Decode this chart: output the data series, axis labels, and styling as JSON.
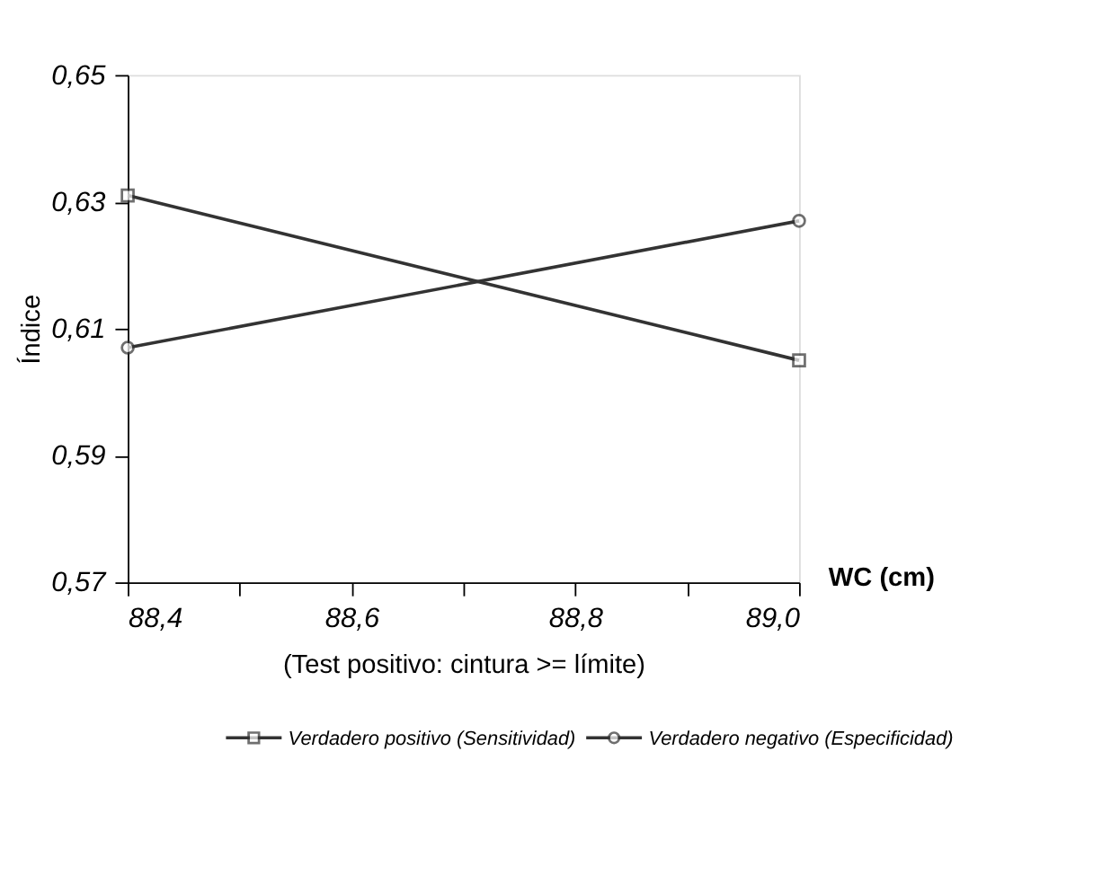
{
  "chart_data": {
    "type": "line",
    "xlabel": "(Test positivo: cintura >= límite)",
    "ylabel": "Índice",
    "annotations": [
      "WC (cm)"
    ],
    "x": [
      88.4,
      89.0
    ],
    "series": [
      {
        "name": "Verdadero positivo (Sensitividad)",
        "color": "#333333",
        "marker": "square",
        "values": [
          0.631,
          0.605
        ]
      },
      {
        "name": "Verdadero negativo (Especificidad)",
        "color": "#333333",
        "marker": "circle",
        "values": [
          0.607,
          0.627
        ]
      }
    ],
    "xlim": [
      88.4,
      89.0
    ],
    "xticks": [
      {
        "value": 88.4,
        "label": "88,4"
      },
      {
        "value": 88.5,
        "label": null
      },
      {
        "value": 88.6,
        "label": "88,6"
      },
      {
        "value": 88.7,
        "label": null
      },
      {
        "value": 88.8,
        "label": "88,8"
      },
      {
        "value": 88.9,
        "label": null
      },
      {
        "value": 89.0,
        "label": "89,0"
      }
    ],
    "ylim": [
      0.57,
      0.65
    ],
    "yticks": [
      {
        "value": 0.57,
        "label": "0,57"
      },
      {
        "value": 0.59,
        "label": "0,59"
      },
      {
        "value": 0.61,
        "label": "0,61"
      },
      {
        "value": 0.63,
        "label": "0,63"
      },
      {
        "value": 0.65,
        "label": "0,65"
      }
    ],
    "grid": false,
    "legend": "bottom",
    "line_style": "solid"
  }
}
